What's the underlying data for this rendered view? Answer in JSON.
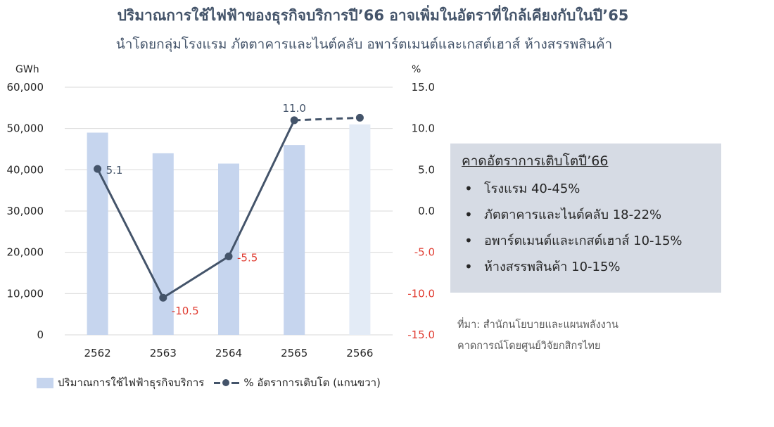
{
  "title": "ปริมาณการใช้ไฟฟ้าของธุรกิจบริการปี’66 อาจเพิ่มในอัตราที่ใกล้เคียงกับในปี’65",
  "subtitle": "นำโดยกลุ่มโรงแรม ภัตตาคารและไนต์คลับ อพาร์ตเมนต์และเกสต์เฮาส์ ห้างสรรพสินค้า",
  "chart_data": {
    "type": "bar",
    "categories": [
      "2562",
      "2563",
      "2564",
      "2565",
      "2566"
    ],
    "y_left": {
      "unit": "GWh",
      "range": [
        0,
        60000
      ],
      "ticks": [
        "60,000",
        "50,000",
        "40,000",
        "30,000",
        "20,000",
        "10,000",
        "0"
      ]
    },
    "y_right": {
      "unit": "%",
      "range": [
        -15,
        15
      ],
      "ticks": [
        "15.0",
        "10.0",
        "5.0",
        "0.0",
        "-5.0",
        "-10.0",
        "-15.0"
      ]
    },
    "grid": true,
    "legend_position": "bottom",
    "series": [
      {
        "name": "ปริมาณการใช้ไฟฟ้าธุรกิจบริการ",
        "type": "bar",
        "axis": "left",
        "values": [
          49000,
          44000,
          41500,
          46000,
          51000
        ],
        "color": "#c6d5ee",
        "forecast_color": "#e3ebf6"
      },
      {
        "name": "% อัตราการเติบโต (แกนขวา)",
        "type": "line",
        "axis": "right",
        "values": [
          5.1,
          -10.5,
          -5.5,
          11.0,
          11.3
        ],
        "color": "#44546a",
        "labels": [
          "5.1",
          "-10.5",
          "-5.5",
          "11.0",
          ""
        ]
      }
    ]
  },
  "info_box": {
    "title": "คาดอัตราการเติบโตปี’66",
    "items": [
      "โรงแรม 40-45%",
      "ภัตตาคารและไนต์คลับ 18-22%",
      "อพาร์ตเมนต์และเกสต์เฮาส์ 10-15%",
      "ห้างสรรพสินค้า 10-15%"
    ]
  },
  "source": {
    "line1": "ที่มา: สำนักนโยบายและแผนพลังงาน",
    "line2": "คาดการณ์โดยศูนย์วิจัยกสิกรไทย"
  },
  "colors": {
    "negative_label": "#e03c31",
    "line": "#44546a",
    "grid": "#d9d9d9"
  }
}
